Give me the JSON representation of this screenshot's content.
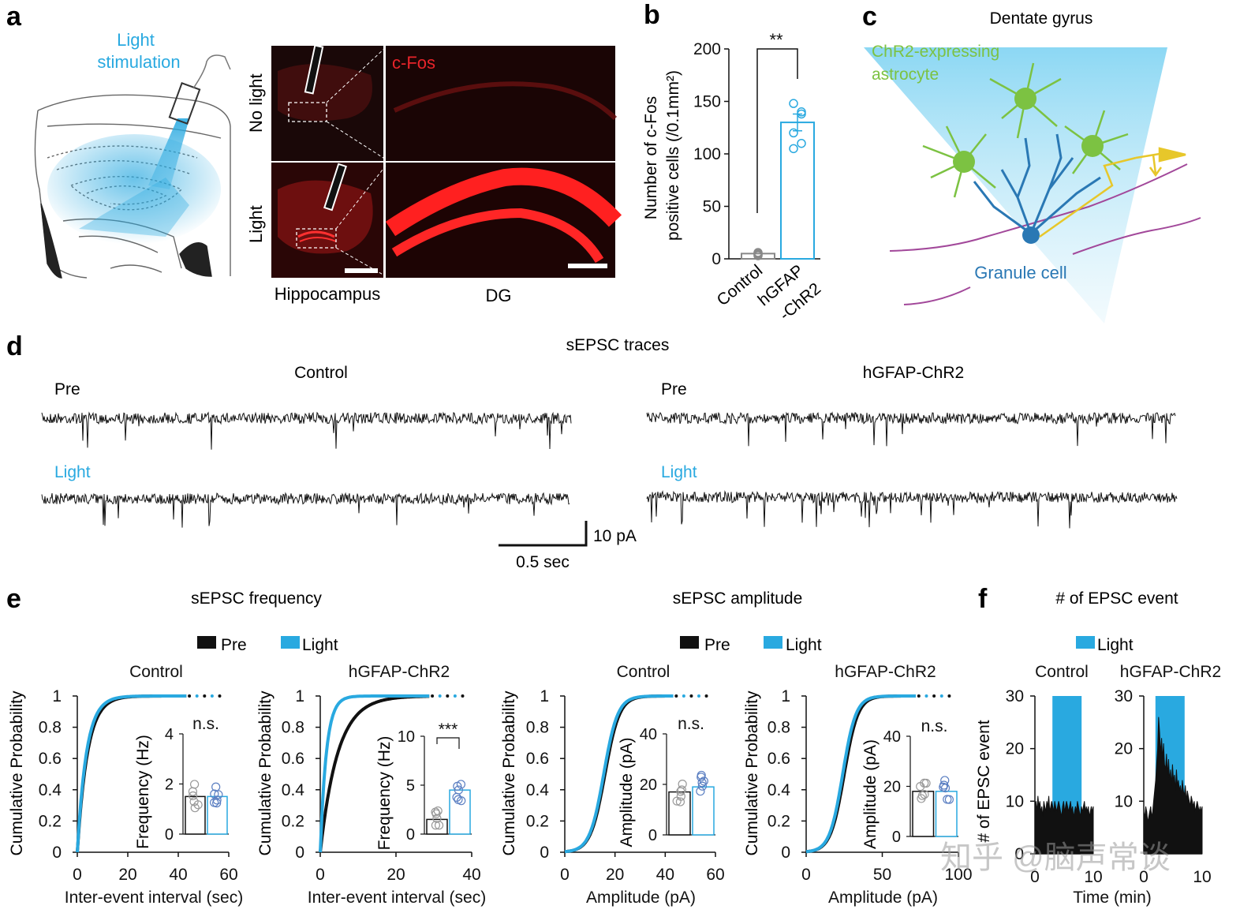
{
  "panels": {
    "a": {
      "letter": "a",
      "light_label_1": "Light",
      "light_label_2": "stimulation",
      "row_no_light": "No light",
      "row_light": "Light",
      "cfos": "c-Fos",
      "col_hippocampus": "Hippocampus",
      "col_dg": "DG"
    },
    "b": {
      "letter": "b"
    },
    "c": {
      "letter": "c",
      "title": "Dentate gyrus",
      "astro_1": "ChR2-expressing",
      "astro_2": "astrocyte",
      "granule": "Granule cell"
    },
    "d": {
      "letter": "d",
      "title": "sEPSC traces",
      "group_control": "Control",
      "group_chr2": "hGFAP-ChR2",
      "pre": "Pre",
      "light": "Light",
      "scale_y": "10 pA",
      "scale_x": "0.5 sec"
    },
    "e": {
      "letter": "e",
      "freq_title": "sEPSC frequency",
      "amp_title": "sEPSC amplitude",
      "legend_pre": "Pre",
      "legend_light": "Light"
    },
    "f": {
      "letter": "f",
      "title": "# of EPSC event",
      "legend_light": "Light",
      "watermark": "知乎 @脑声常谈"
    }
  },
  "colors": {
    "light": "#29a9e0",
    "pre": "#111111",
    "red": "#e8242a",
    "green": "#7cc242",
    "granule": "#2a78b4",
    "axon": "#a2489a",
    "arrow": "#e7c72a"
  },
  "chart_data": [
    {
      "id": "b",
      "type": "bar",
      "categories": [
        "Control",
        "hGFAP\n-ChR2"
      ],
      "tick_labels": [
        "Control",
        "hGFAP",
        "-ChR2"
      ],
      "values": [
        5,
        130
      ],
      "points": [
        [
          3,
          5,
          6,
          4
        ],
        [
          148,
          140,
          120,
          110,
          105,
          138
        ]
      ],
      "ylabel_1": "Number of c-Fos",
      "ylabel_2": "positive cells (/0.1mm²)",
      "ylim": [
        0,
        200
      ],
      "yticks": [
        "0",
        "50",
        "100",
        "150",
        "200"
      ],
      "significance": "**"
    },
    {
      "id": "e1",
      "type": "line",
      "title": "Control",
      "xlabel": "Inter-event interval (sec)",
      "ylabel": "Cumulative Probability",
      "xlim": [
        0,
        60
      ],
      "ylim": [
        0,
        1
      ],
      "xticks": [
        "0",
        "20",
        "40",
        "60"
      ],
      "yticks": [
        "0",
        "0.2",
        "0.4",
        "0.6",
        "0.8",
        "1"
      ],
      "series": [
        {
          "name": "Pre",
          "scale": 4.0
        },
        {
          "name": "Light",
          "scale": 3.6
        }
      ],
      "inset": {
        "ylabel": "Frequency (Hz)",
        "ylim": [
          0,
          4
        ],
        "yticks": [
          "0",
          "2",
          "4"
        ],
        "values": [
          1.5,
          1.5
        ],
        "sig": "n.s."
      }
    },
    {
      "id": "e2",
      "type": "line",
      "title": "hGFAP-ChR2",
      "xlabel": "Inter-event interval (sec)",
      "ylabel": "Cumulative Probability",
      "xlim": [
        0,
        40
      ],
      "ylim": [
        0,
        1
      ],
      "xticks": [
        "0",
        "20",
        "40"
      ],
      "yticks": [
        "0",
        "0.2",
        "0.4",
        "0.6",
        "0.8",
        "1"
      ],
      "series": [
        {
          "name": "Pre",
          "scale": 4.6
        },
        {
          "name": "Light",
          "scale": 1.6
        }
      ],
      "inset": {
        "ylabel": "Frequency (Hz)",
        "ylim": [
          0,
          10
        ],
        "yticks": [
          "0",
          "5",
          "10"
        ],
        "values": [
          1.5,
          4.5
        ],
        "sig": "***"
      }
    },
    {
      "id": "e3",
      "type": "line",
      "title": "Control",
      "xlabel": "Amplitude (pA)",
      "ylabel": "Cumulative Probability",
      "xlim": [
        0,
        60
      ],
      "ylim": [
        0,
        1
      ],
      "xticks": [
        "0",
        "20",
        "40",
        "60"
      ],
      "yticks": [
        "0",
        "0.2",
        "0.4",
        "0.6",
        "0.8",
        "1"
      ],
      "series": [
        {
          "name": "Pre",
          "mid": 16
        },
        {
          "name": "Light",
          "mid": 15.5
        }
      ],
      "inset": {
        "ylabel": "Amplitude (pA)",
        "ylim": [
          0,
          40
        ],
        "yticks": [
          "0",
          "20",
          "40"
        ],
        "values": [
          17,
          19
        ],
        "sig": "n.s."
      }
    },
    {
      "id": "e4",
      "type": "line",
      "title": "hGFAP-ChR2",
      "xlabel": "Amplitude (pA)",
      "ylabel": "Cumulative Probability",
      "xlim": [
        0,
        100
      ],
      "ylim": [
        0,
        1
      ],
      "xticks": [
        "0",
        "50",
        "100"
      ],
      "yticks": [
        "0",
        "0.2",
        "0.4",
        "0.6",
        "0.8",
        "1"
      ],
      "series": [
        {
          "name": "Pre",
          "mid": 25
        },
        {
          "name": "Light",
          "mid": 24
        }
      ],
      "inset": {
        "ylabel": "Amplitude (pA)",
        "ylim": [
          0,
          40
        ],
        "yticks": [
          "0",
          "20",
          "40"
        ],
        "values": [
          18,
          18
        ],
        "sig": "n.s."
      }
    },
    {
      "id": "f1",
      "type": "area",
      "title": "Control",
      "ylabel": "# of EPSC event",
      "xlim": [
        0,
        10
      ],
      "ylim": [
        0,
        30
      ],
      "xticks": [
        "0",
        "10"
      ],
      "yticks": [
        "0",
        "10",
        "20",
        "30"
      ],
      "light_window": [
        3,
        8
      ],
      "values": [
        9,
        10,
        8,
        11,
        9,
        10,
        8,
        9,
        7,
        10,
        9,
        8,
        10,
        9,
        11,
        8,
        9,
        10,
        9,
        8,
        10,
        9,
        8,
        9,
        10,
        9,
        8,
        7,
        9,
        10,
        8,
        9,
        10,
        9,
        8,
        9,
        10,
        8,
        9,
        7,
        8,
        9,
        8,
        10,
        9,
        8,
        7,
        9,
        8,
        9,
        10,
        8,
        9,
        8,
        9,
        7,
        8,
        9,
        8,
        9
      ]
    },
    {
      "id": "f2",
      "type": "area",
      "title": "hGFAP-ChR2",
      "xlim": [
        0,
        10
      ],
      "ylim": [
        0,
        30
      ],
      "xticks": [
        "0",
        "10"
      ],
      "yticks": [
        "10",
        "20",
        "30"
      ],
      "xlabel": "Time (min)",
      "light_window": [
        2,
        7
      ],
      "values": [
        8,
        7,
        9,
        8,
        6,
        7,
        8,
        9,
        7,
        8,
        10,
        12,
        14,
        17,
        20,
        26,
        23,
        19,
        22,
        18,
        21,
        17,
        16,
        19,
        15,
        18,
        14,
        16,
        13,
        17,
        14,
        15,
        12,
        16,
        13,
        14,
        12,
        13,
        11,
        14,
        12,
        11,
        13,
        10,
        12,
        11,
        10,
        9,
        11,
        10,
        9,
        10,
        8,
        9,
        10,
        9,
        8,
        9,
        8,
        9
      ]
    }
  ]
}
